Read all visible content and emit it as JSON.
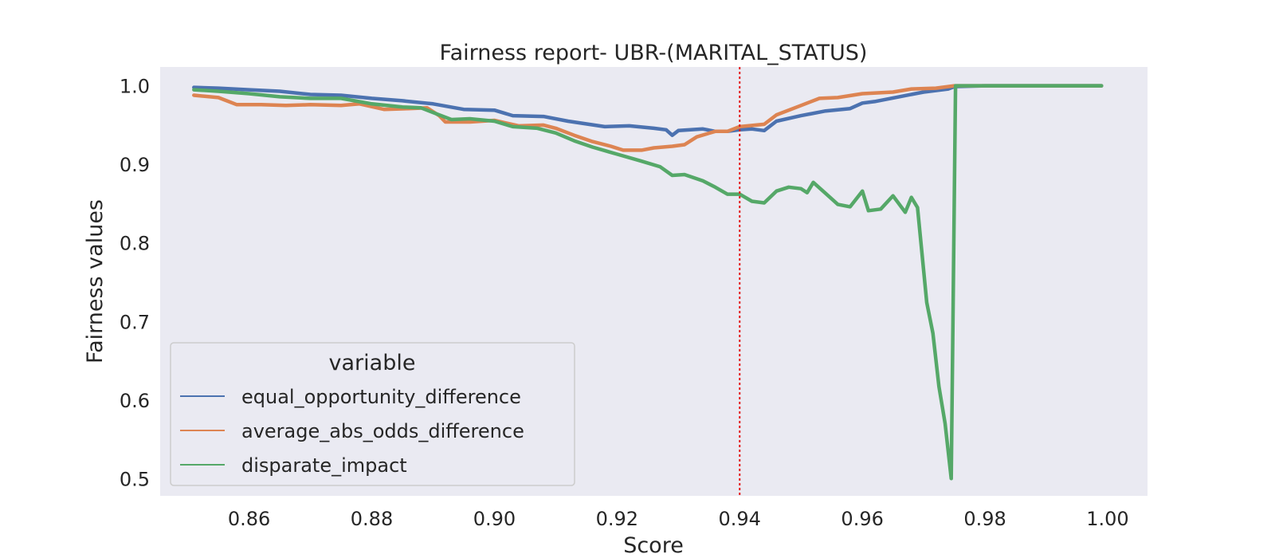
{
  "chart_data": {
    "type": "line",
    "title": "Fairness report- UBR-(MARITAL_STATUS)",
    "xlabel": "Score",
    "ylabel": "Fairness values",
    "xlim": [
      0.8455,
      1.0065
    ],
    "ylim": [
      0.478,
      1.024
    ],
    "x_ticks": [
      "0.86",
      "0.88",
      "0.90",
      "0.92",
      "0.94",
      "0.96",
      "0.98",
      "1.00"
    ],
    "y_ticks": [
      "0.5",
      "0.6",
      "0.7",
      "0.8",
      "0.9",
      "1.0"
    ],
    "grid": false,
    "background": "#eaeaf2",
    "legend": {
      "title": "variable",
      "placement": "lower-left"
    },
    "threshold_line": {
      "x": 0.94,
      "color": "#e41a1c",
      "style": "dotted"
    },
    "series": [
      {
        "name": "equal_opportunity_difference",
        "color": "#4c72b0",
        "points": [
          [
            0.851,
            0.998
          ],
          [
            0.855,
            0.997
          ],
          [
            0.86,
            0.995
          ],
          [
            0.865,
            0.993
          ],
          [
            0.87,
            0.989
          ],
          [
            0.875,
            0.988
          ],
          [
            0.88,
            0.984
          ],
          [
            0.885,
            0.981
          ],
          [
            0.89,
            0.977
          ],
          [
            0.895,
            0.97
          ],
          [
            0.9,
            0.969
          ],
          [
            0.903,
            0.962
          ],
          [
            0.908,
            0.961
          ],
          [
            0.912,
            0.955
          ],
          [
            0.918,
            0.948
          ],
          [
            0.922,
            0.949
          ],
          [
            0.926,
            0.946
          ],
          [
            0.928,
            0.944
          ],
          [
            0.929,
            0.937
          ],
          [
            0.93,
            0.943
          ],
          [
            0.932,
            0.944
          ],
          [
            0.934,
            0.945
          ],
          [
            0.936,
            0.942
          ],
          [
            0.938,
            0.942
          ],
          [
            0.94,
            0.944
          ],
          [
            0.942,
            0.945
          ],
          [
            0.944,
            0.943
          ],
          [
            0.946,
            0.955
          ],
          [
            0.95,
            0.962
          ],
          [
            0.954,
            0.968
          ],
          [
            0.958,
            0.971
          ],
          [
            0.96,
            0.978
          ],
          [
            0.962,
            0.98
          ],
          [
            0.966,
            0.986
          ],
          [
            0.97,
            0.992
          ],
          [
            0.974,
            0.996
          ],
          [
            0.975,
            0.999
          ],
          [
            0.98,
            1.0
          ],
          [
            0.99,
            1.0
          ],
          [
            0.999,
            1.0
          ]
        ]
      },
      {
        "name": "average_abs_odds_difference",
        "color": "#dd8452",
        "points": [
          [
            0.851,
            0.988
          ],
          [
            0.855,
            0.985
          ],
          [
            0.858,
            0.976
          ],
          [
            0.862,
            0.976
          ],
          [
            0.866,
            0.975
          ],
          [
            0.87,
            0.976
          ],
          [
            0.875,
            0.975
          ],
          [
            0.878,
            0.977
          ],
          [
            0.882,
            0.97
          ],
          [
            0.886,
            0.971
          ],
          [
            0.889,
            0.972
          ],
          [
            0.891,
            0.962
          ],
          [
            0.892,
            0.954
          ],
          [
            0.896,
            0.954
          ],
          [
            0.9,
            0.956
          ],
          [
            0.904,
            0.949
          ],
          [
            0.908,
            0.95
          ],
          [
            0.91,
            0.946
          ],
          [
            0.913,
            0.937
          ],
          [
            0.916,
            0.929
          ],
          [
            0.919,
            0.923
          ],
          [
            0.921,
            0.918
          ],
          [
            0.924,
            0.918
          ],
          [
            0.926,
            0.921
          ],
          [
            0.929,
            0.923
          ],
          [
            0.931,
            0.925
          ],
          [
            0.933,
            0.935
          ],
          [
            0.936,
            0.942
          ],
          [
            0.938,
            0.942
          ],
          [
            0.94,
            0.948
          ],
          [
            0.944,
            0.951
          ],
          [
            0.946,
            0.963
          ],
          [
            0.95,
            0.975
          ],
          [
            0.953,
            0.984
          ],
          [
            0.956,
            0.985
          ],
          [
            0.96,
            0.99
          ],
          [
            0.965,
            0.992
          ],
          [
            0.968,
            0.996
          ],
          [
            0.972,
            0.997
          ],
          [
            0.975,
            1.0
          ],
          [
            0.98,
            1.0
          ],
          [
            0.99,
            1.0
          ],
          [
            0.999,
            1.0
          ]
        ]
      },
      {
        "name": "disparate_impact",
        "color": "#55a868",
        "points": [
          [
            0.851,
            0.995
          ],
          [
            0.855,
            0.993
          ],
          [
            0.86,
            0.99
          ],
          [
            0.865,
            0.986
          ],
          [
            0.87,
            0.984
          ],
          [
            0.875,
            0.984
          ],
          [
            0.88,
            0.977
          ],
          [
            0.885,
            0.973
          ],
          [
            0.888,
            0.972
          ],
          [
            0.89,
            0.966
          ],
          [
            0.893,
            0.957
          ],
          [
            0.896,
            0.958
          ],
          [
            0.9,
            0.955
          ],
          [
            0.903,
            0.948
          ],
          [
            0.907,
            0.946
          ],
          [
            0.91,
            0.94
          ],
          [
            0.913,
            0.93
          ],
          [
            0.916,
            0.922
          ],
          [
            0.92,
            0.913
          ],
          [
            0.924,
            0.904
          ],
          [
            0.927,
            0.897
          ],
          [
            0.929,
            0.886
          ],
          [
            0.931,
            0.887
          ],
          [
            0.934,
            0.879
          ],
          [
            0.936,
            0.871
          ],
          [
            0.938,
            0.862
          ],
          [
            0.94,
            0.862
          ],
          [
            0.942,
            0.853
          ],
          [
            0.944,
            0.851
          ],
          [
            0.946,
            0.866
          ],
          [
            0.948,
            0.871
          ],
          [
            0.95,
            0.869
          ],
          [
            0.951,
            0.864
          ],
          [
            0.952,
            0.877
          ],
          [
            0.954,
            0.863
          ],
          [
            0.956,
            0.849
          ],
          [
            0.958,
            0.846
          ],
          [
            0.96,
            0.866
          ],
          [
            0.961,
            0.841
          ],
          [
            0.963,
            0.843
          ],
          [
            0.965,
            0.86
          ],
          [
            0.967,
            0.839
          ],
          [
            0.968,
            0.858
          ],
          [
            0.969,
            0.845
          ],
          [
            0.9705,
            0.724
          ],
          [
            0.9715,
            0.685
          ],
          [
            0.9725,
            0.617
          ],
          [
            0.9735,
            0.57
          ],
          [
            0.9745,
            0.5
          ],
          [
            0.9752,
            1.0
          ],
          [
            0.98,
            1.0
          ],
          [
            0.99,
            1.0
          ],
          [
            0.999,
            1.0
          ]
        ]
      }
    ]
  }
}
